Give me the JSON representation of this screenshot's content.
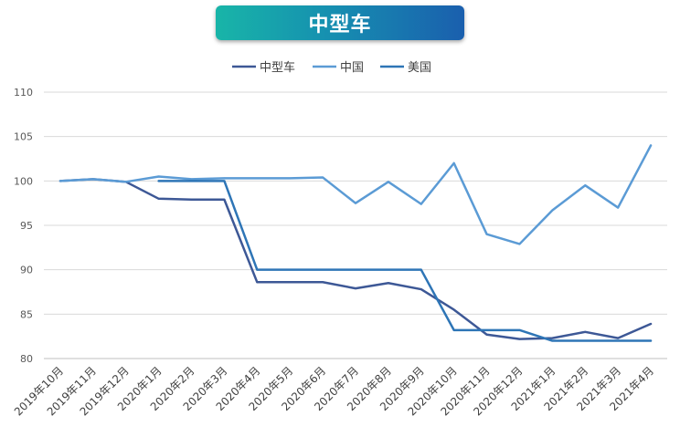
{
  "chart_data": {
    "type": "line",
    "title": "中型车",
    "xlabel": "",
    "ylabel": "",
    "ylim": [
      80,
      110
    ],
    "yticks": [
      80,
      85,
      90,
      95,
      100,
      105,
      110
    ],
    "grid": true,
    "legend_position": "top",
    "categories": [
      "2019年10月",
      "2019年11月",
      "2019年12月",
      "2020年1月",
      "2020年2月",
      "2020年3月",
      "2020年4月",
      "2020年5月",
      "2020年6月",
      "2020年7月",
      "2020年8月",
      "2020年9月",
      "2020年10月",
      "2020年11月",
      "2020年12月",
      "2021年1月",
      "2021年2月",
      "2021年3月",
      "2021年4月"
    ],
    "series": [
      {
        "name": "中型车",
        "color": "#3d5896",
        "width": 2.5,
        "values": [
          100,
          100.2,
          99.9,
          98,
          97.9,
          97.9,
          88.6,
          88.6,
          88.6,
          87.9,
          88.5,
          87.8,
          85.5,
          82.7,
          82.2,
          82.3,
          83,
          82.3,
          83.9
        ]
      },
      {
        "name": "中国",
        "color": "#5b9bd5",
        "width": 2.5,
        "values": [
          100,
          100.2,
          99.9,
          100.5,
          100.2,
          100.3,
          100.3,
          100.3,
          100.4,
          97.5,
          99.9,
          97.4,
          102,
          94,
          92.9,
          96.7,
          99.5,
          97,
          104
        ]
      },
      {
        "name": "美国",
        "color": "#2e75b6",
        "width": 2.5,
        "values": [
          null,
          null,
          null,
          100,
          100,
          100,
          90,
          90,
          90,
          90,
          90,
          90,
          83.2,
          83.2,
          83.2,
          82,
          82,
          82,
          82
        ]
      }
    ]
  }
}
